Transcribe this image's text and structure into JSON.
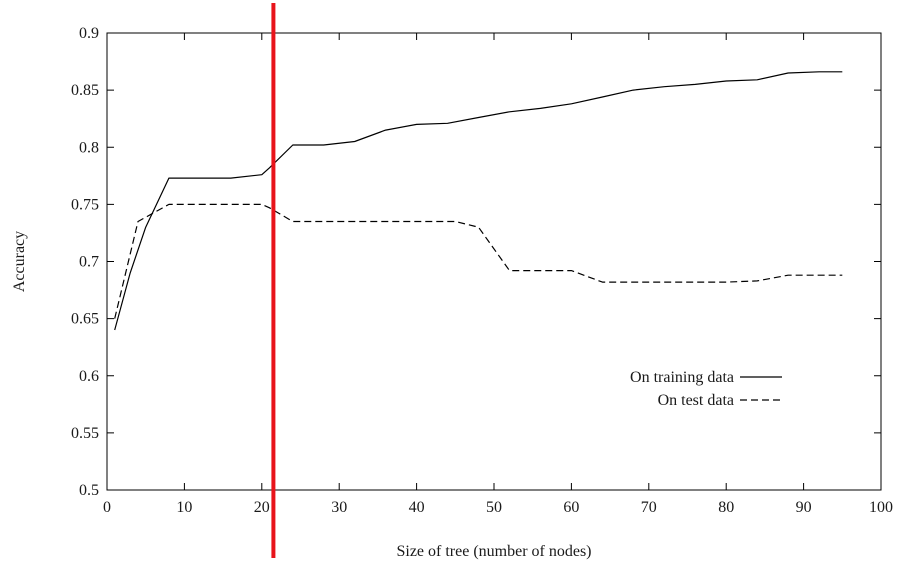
{
  "chart_data": {
    "type": "line",
    "xlabel": "Size of tree (number of nodes)",
    "ylabel": "Accuracy",
    "xlim": [
      0,
      100
    ],
    "ylim": [
      0.5,
      0.9
    ],
    "x_ticks": [
      "0",
      "10",
      "20",
      "30",
      "40",
      "50",
      "60",
      "70",
      "80",
      "90",
      "100"
    ],
    "y_ticks": [
      "0.5",
      "0.55",
      "0.6",
      "0.65",
      "0.7",
      "0.75",
      "0.8",
      "0.85",
      "0.9"
    ],
    "x_tick_values": [
      0,
      10,
      20,
      30,
      40,
      50,
      60,
      70,
      80,
      90,
      100
    ],
    "y_tick_values": [
      0.5,
      0.55,
      0.6,
      0.65,
      0.7,
      0.75,
      0.8,
      0.85,
      0.9
    ],
    "grid": false,
    "legend_position": "lower-right",
    "series": [
      {
        "name": "On training data",
        "style": "solid",
        "color": "#000000",
        "x": [
          1,
          3,
          5,
          8,
          12,
          16,
          20,
          21,
          24,
          28,
          32,
          36,
          40,
          44,
          48,
          52,
          56,
          60,
          64,
          68,
          72,
          76,
          80,
          84,
          88,
          92,
          95
        ],
        "y": [
          0.64,
          0.69,
          0.73,
          0.773,
          0.773,
          0.773,
          0.776,
          0.782,
          0.802,
          0.802,
          0.805,
          0.815,
          0.82,
          0.821,
          0.826,
          0.831,
          0.834,
          0.838,
          0.844,
          0.85,
          0.853,
          0.855,
          0.858,
          0.859,
          0.865,
          0.866,
          0.866
        ]
      },
      {
        "name": "On test data",
        "style": "dashed",
        "color": "#000000",
        "x": [
          1,
          4,
          8,
          12,
          16,
          20,
          21,
          24,
          30,
          40,
          45,
          48,
          52,
          60,
          64,
          70,
          80,
          84,
          88,
          95
        ],
        "y": [
          0.65,
          0.735,
          0.75,
          0.75,
          0.75,
          0.75,
          0.747,
          0.735,
          0.735,
          0.735,
          0.735,
          0.73,
          0.692,
          0.692,
          0.682,
          0.682,
          0.682,
          0.683,
          0.688,
          0.688
        ]
      }
    ],
    "annotations": [
      {
        "type": "vertical-line",
        "x": 21.5,
        "color": "#e8141b"
      }
    ]
  }
}
